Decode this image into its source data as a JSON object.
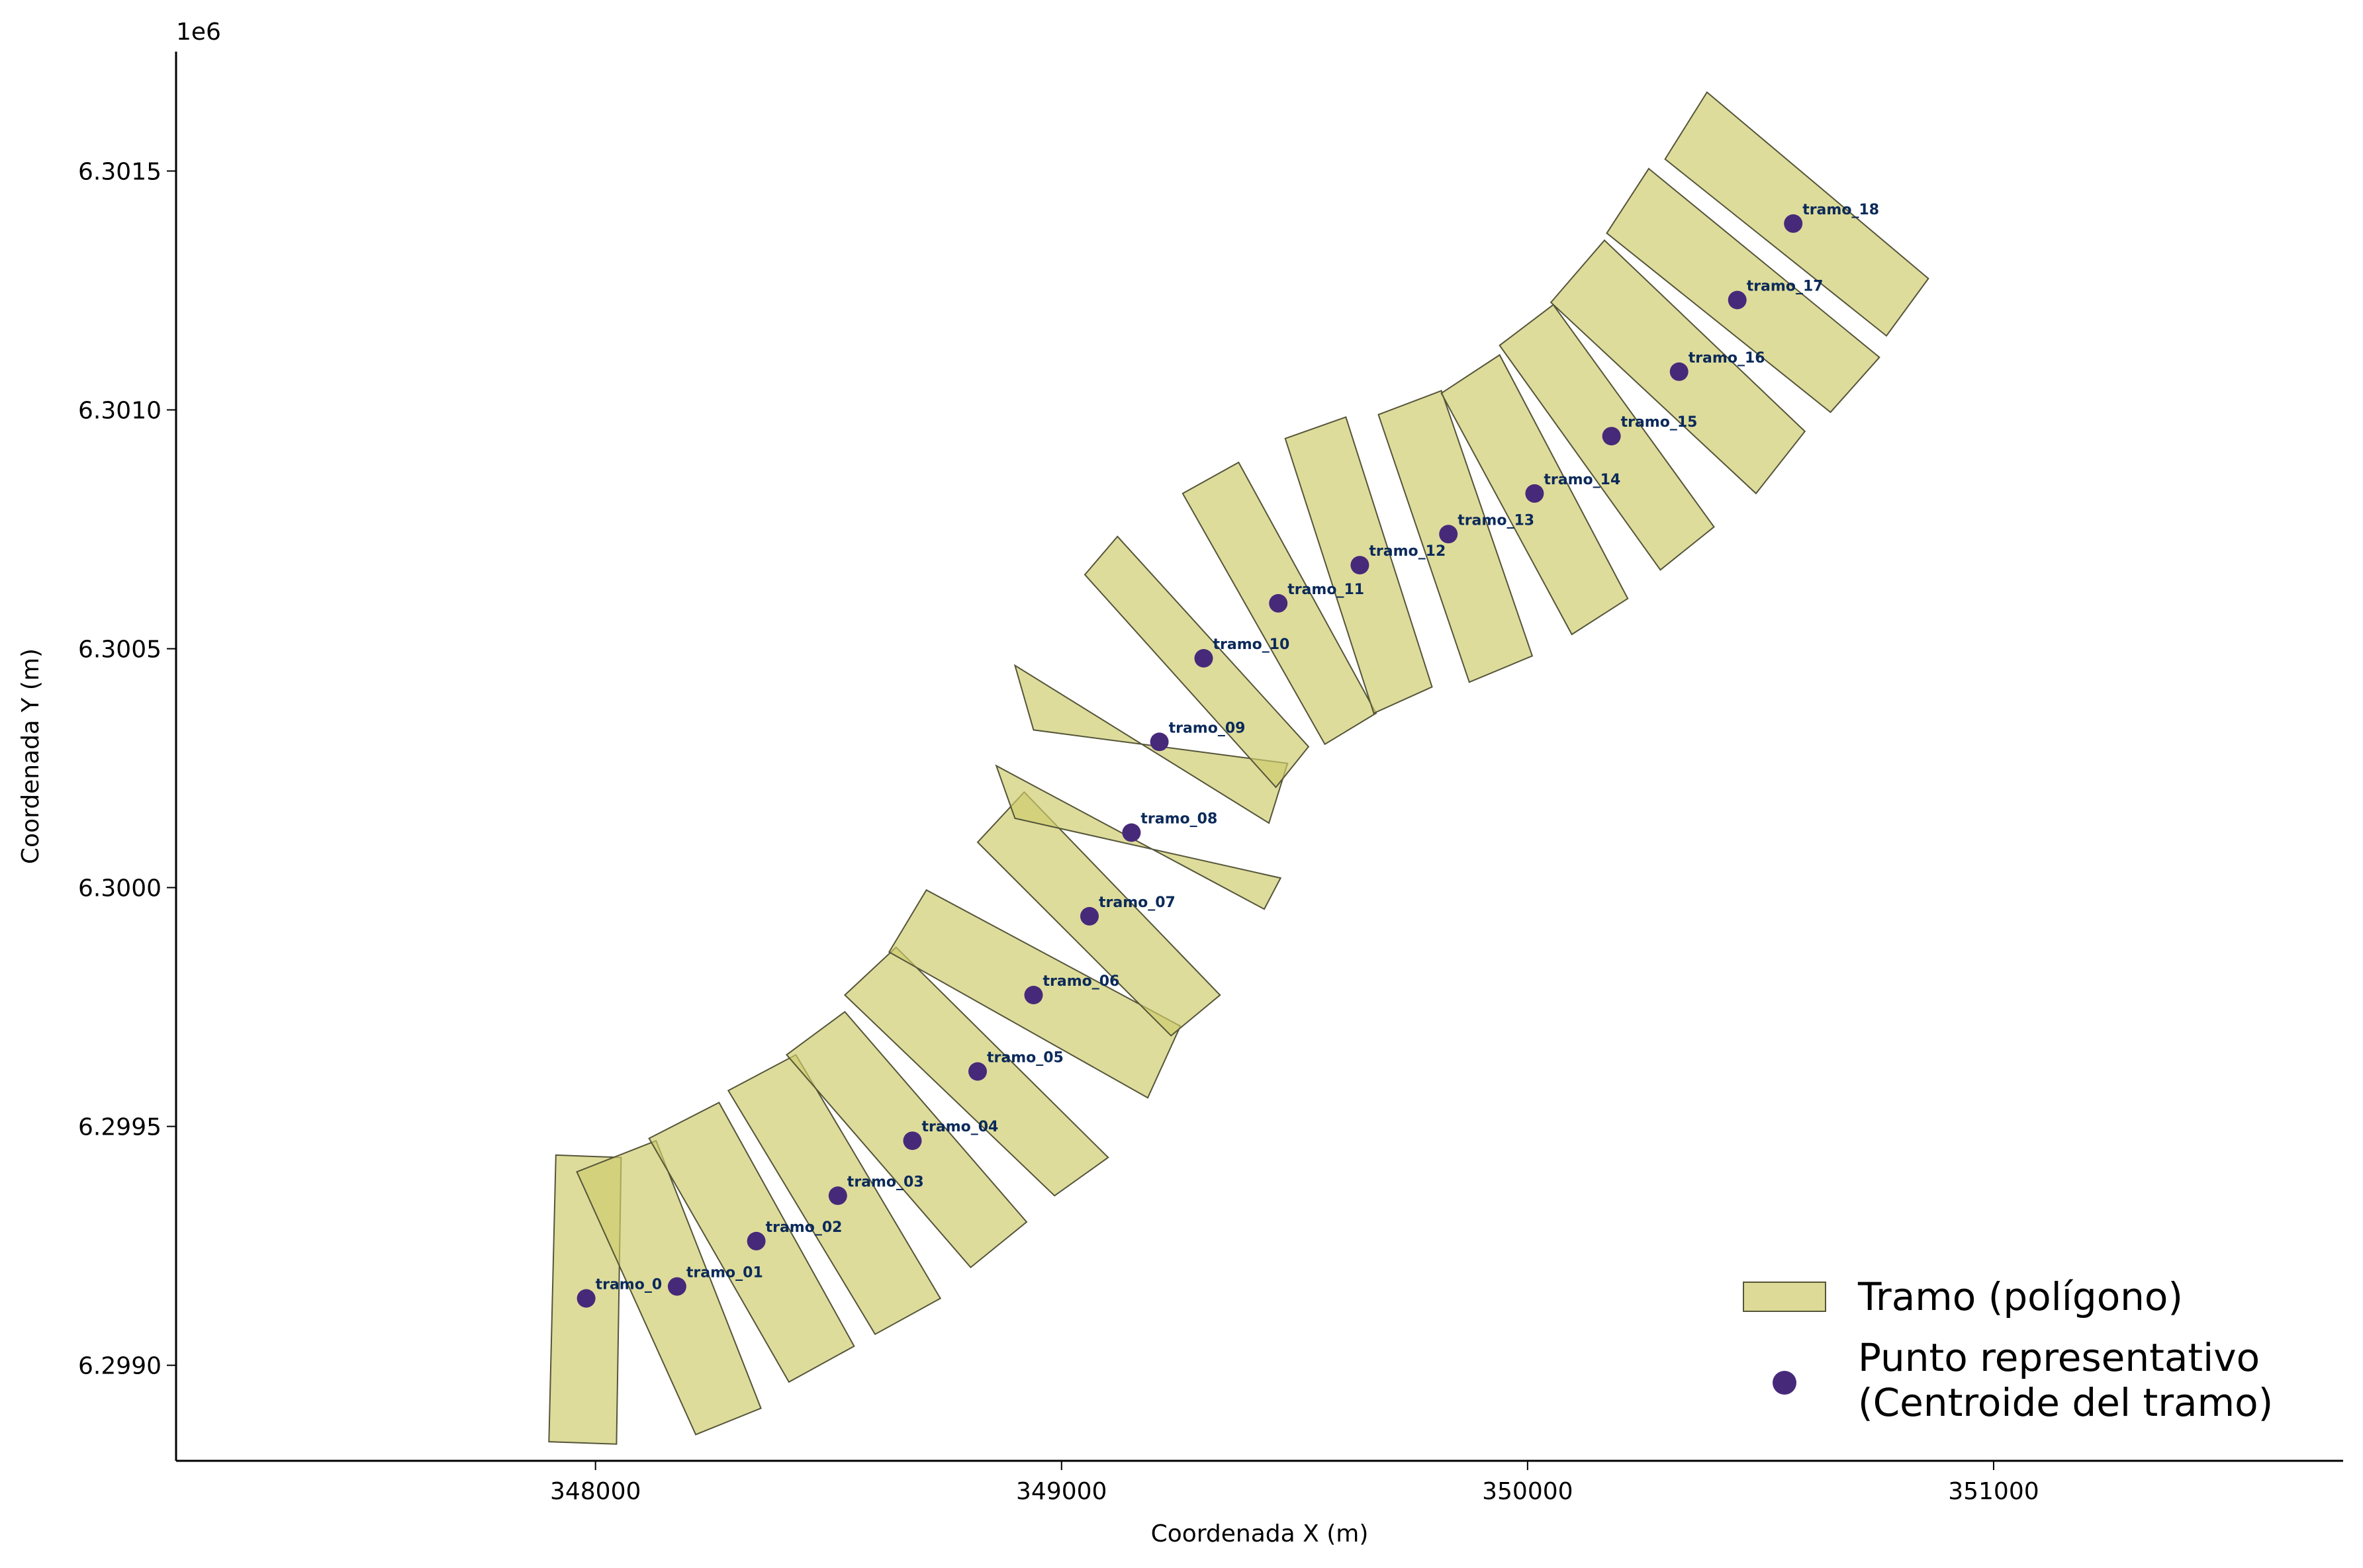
{
  "chart_data": {
    "type": "scatter",
    "title": "",
    "xlabel": "Coordenada X (m)",
    "ylabel": "Coordenada Y (m)",
    "offset_text": "1e6",
    "xlim": [
      347100,
      351750
    ],
    "ylim": [
      6298800,
      6301750
    ],
    "x_ticks": [
      {
        "value": 348000,
        "label": "348000"
      },
      {
        "value": 349000,
        "label": "349000"
      },
      {
        "value": 350000,
        "label": "350000"
      },
      {
        "value": 351000,
        "label": "351000"
      }
    ],
    "y_ticks": [
      {
        "value": 6299000,
        "label": "6.2990"
      },
      {
        "value": 6299500,
        "label": "6.2995"
      },
      {
        "value": 6300000,
        "label": "6.3000"
      },
      {
        "value": 6300500,
        "label": "6.3005"
      },
      {
        "value": 6301000,
        "label": "6.3010"
      },
      {
        "value": 6301500,
        "label": "6.3015"
      }
    ],
    "colors": {
      "polygon_fill": "#cfcb6b",
      "polygon_edge": "#55553a",
      "point": "#47297a",
      "label": "#0b2a5a"
    },
    "legend": {
      "location": "lower right",
      "entries": [
        {
          "label": "Tramo (polígono)"
        },
        {
          "label_line1": "Punto representativo",
          "label_line2": "(Centroide del tramo)"
        }
      ]
    },
    "segments": [
      {
        "name": "tramo_00",
        "label": "tramo_0",
        "cx": 347980,
        "cy": 6299140,
        "polygon": [
          [
            347915,
            6299440
          ],
          [
            348055,
            6299435
          ],
          [
            348045,
            6298835
          ],
          [
            347900,
            6298840
          ]
        ]
      },
      {
        "name": "tramo_01",
        "label": "tramo_01",
        "cx": 348175,
        "cy": 6299165,
        "polygon": [
          [
            347960,
            6299405
          ],
          [
            348130,
            6299470
          ],
          [
            348355,
            6298910
          ],
          [
            348215,
            6298855
          ]
        ]
      },
      {
        "name": "tramo_02",
        "label": "tramo_02",
        "cx": 348345,
        "cy": 6299260,
        "polygon": [
          [
            348115,
            6299475
          ],
          [
            348265,
            6299550
          ],
          [
            348555,
            6299040
          ],
          [
            348415,
            6298965
          ]
        ]
      },
      {
        "name": "tramo_03",
        "label": "tramo_03",
        "cx": 348520,
        "cy": 6299355,
        "polygon": [
          [
            348285,
            6299575
          ],
          [
            348430,
            6299650
          ],
          [
            348740,
            6299140
          ],
          [
            348600,
            6299065
          ]
        ]
      },
      {
        "name": "tramo_04",
        "label": "tramo_04",
        "cx": 348680,
        "cy": 6299470,
        "polygon": [
          [
            348410,
            6299650
          ],
          [
            348535,
            6299740
          ],
          [
            348925,
            6299300
          ],
          [
            348805,
            6299205
          ]
        ]
      },
      {
        "name": "tramo_05",
        "label": "tramo_05",
        "cx": 348820,
        "cy": 6299615,
        "polygon": [
          [
            348535,
            6299775
          ],
          [
            348645,
            6299875
          ],
          [
            349100,
            6299435
          ],
          [
            348985,
            6299355
          ]
        ]
      },
      {
        "name": "tramo_06",
        "label": "tramo_06",
        "cx": 348940,
        "cy": 6299775,
        "polygon": [
          [
            348630,
            6299865
          ],
          [
            348710,
            6299995
          ],
          [
            349255,
            6299710
          ],
          [
            349185,
            6299560
          ]
        ]
      },
      {
        "name": "tramo_07",
        "label": "tramo_07",
        "cx": 349060,
        "cy": 6299940,
        "polygon": [
          [
            348820,
            6300095
          ],
          [
            348920,
            6300200
          ],
          [
            349340,
            6299775
          ],
          [
            349235,
            6299690
          ]
        ]
      },
      {
        "name": "tramo_08",
        "label": "tramo_08",
        "cx": 349150,
        "cy": 6300115,
        "polygon": [
          [
            348860,
            6300255
          ],
          [
            348900,
            6300145
          ],
          [
            349470,
            6300020
          ],
          [
            349435,
            6299955
          ]
        ]
      },
      {
        "name": "tramo_09",
        "label": "tramo_09",
        "cx": 349210,
        "cy": 6300305,
        "polygon": [
          [
            348900,
            6300465
          ],
          [
            348940,
            6300330
          ],
          [
            349485,
            6300260
          ],
          [
            349445,
            6300135
          ]
        ]
      },
      {
        "name": "tramo_10",
        "label": "tramo_10",
        "cx": 349305,
        "cy": 6300480,
        "polygon": [
          [
            349050,
            6300655
          ],
          [
            349120,
            6300735
          ],
          [
            349530,
            6300295
          ],
          [
            349460,
            6300210
          ]
        ]
      },
      {
        "name": "tramo_11",
        "label": "tramo_11",
        "cx": 349465,
        "cy": 6300595,
        "polygon": [
          [
            349260,
            6300825
          ],
          [
            349380,
            6300890
          ],
          [
            349675,
            6300365
          ],
          [
            349565,
            6300300
          ]
        ]
      },
      {
        "name": "tramo_12",
        "label": "tramo_12",
        "cx": 349640,
        "cy": 6300675,
        "polygon": [
          [
            349480,
            6300940
          ],
          [
            349610,
            6300985
          ],
          [
            349795,
            6300420
          ],
          [
            349670,
            6300365
          ]
        ]
      },
      {
        "name": "tramo_13",
        "label": "tramo_13",
        "cx": 349830,
        "cy": 6300740,
        "polygon": [
          [
            349680,
            6300990
          ],
          [
            349815,
            6301040
          ],
          [
            350010,
            6300485
          ],
          [
            349875,
            6300430
          ]
        ]
      },
      {
        "name": "tramo_14",
        "label": "tramo_14",
        "cx": 350015,
        "cy": 6300825,
        "polygon": [
          [
            349815,
            6301035
          ],
          [
            349940,
            6301115
          ],
          [
            350215,
            6300605
          ],
          [
            350095,
            6300530
          ]
        ]
      },
      {
        "name": "tramo_15",
        "label": "tramo_15",
        "cx": 350180,
        "cy": 6300945,
        "polygon": [
          [
            349940,
            6301135
          ],
          [
            350055,
            6301220
          ],
          [
            350400,
            6300755
          ],
          [
            350285,
            6300665
          ]
        ]
      },
      {
        "name": "tramo_16",
        "label": "tramo_16",
        "cx": 350325,
        "cy": 6301080,
        "polygon": [
          [
            350050,
            6301225
          ],
          [
            350165,
            6301355
          ],
          [
            350595,
            6300955
          ],
          [
            350490,
            6300825
          ]
        ]
      },
      {
        "name": "tramo_17",
        "label": "tramo_17",
        "cx": 350450,
        "cy": 6301230,
        "polygon": [
          [
            350170,
            6301370
          ],
          [
            350260,
            6301505
          ],
          [
            350755,
            6301110
          ],
          [
            350650,
            6300995
          ]
        ]
      },
      {
        "name": "tramo_18",
        "label": "tramo_18",
        "cx": 350570,
        "cy": 6301390,
        "polygon": [
          [
            350295,
            6301525
          ],
          [
            350385,
            6301665
          ],
          [
            350860,
            6301275
          ],
          [
            350770,
            6301155
          ]
        ]
      }
    ]
  }
}
